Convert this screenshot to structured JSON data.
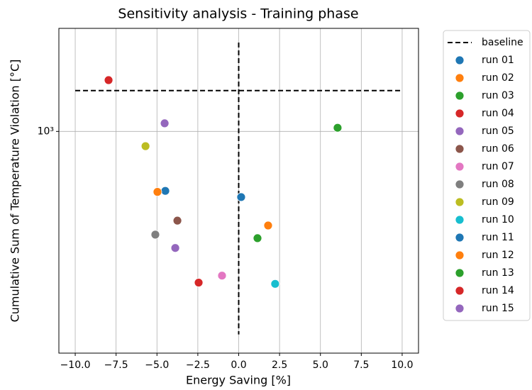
{
  "chart_data": {
    "type": "scatter",
    "title": "Sensitivity analysis - Training phase",
    "x_label": "Energy Saving [%]",
    "y_label": "Cumulative Sum of Temperature Violation [°C]",
    "xlim": [
      -11,
      11
    ],
    "ylim": [
      300,
      1750
    ],
    "y_log": true,
    "grid": true,
    "legend": "outside right",
    "xticks": [
      {
        "value": -10,
        "label": "−10.0"
      },
      {
        "value": -7.5,
        "label": "−7.5"
      },
      {
        "value": -5,
        "label": "−5.0"
      },
      {
        "value": -2.5,
        "label": "−2.5"
      },
      {
        "value": 0,
        "label": "0.0"
      },
      {
        "value": 2.5,
        "label": "2.5"
      },
      {
        "value": 5,
        "label": "5.0"
      },
      {
        "value": 7.5,
        "label": "7.5"
      },
      {
        "value": 10,
        "label": "10.0"
      }
    ],
    "yticks": [
      {
        "value": 1000,
        "label": "10³"
      }
    ],
    "lines": [
      {
        "name": "baseline",
        "color": "#000000",
        "dashed": true,
        "x": [
          -10,
          10,
          null,
          0,
          0
        ],
        "values": [
          1248,
          1248,
          null,
          1620,
          332
        ]
      }
    ],
    "series": [
      {
        "name": "run 01",
        "color": "#1f77b4",
        "x": [
          -4.49
        ],
        "values": [
          724
        ]
      },
      {
        "name": "run 02",
        "color": "#ff7f0e",
        "x": [
          -4.97
        ],
        "values": [
          720
        ]
      },
      {
        "name": "run 03",
        "color": "#2ca02c",
        "x": [
          6.05
        ],
        "values": [
          1020
        ]
      },
      {
        "name": "run 04",
        "color": "#d62728",
        "x": [
          -7.96
        ],
        "values": [
          1321
        ]
      },
      {
        "name": "run 05",
        "color": "#9467bd",
        "x": [
          -4.53
        ],
        "values": [
          1045
        ]
      },
      {
        "name": "run 06",
        "color": "#8c564b",
        "x": [
          -3.75
        ],
        "values": [
          616
        ]
      },
      {
        "name": "run 07",
        "color": "#e377c2",
        "x": [
          -1.02
        ],
        "values": [
          457
        ]
      },
      {
        "name": "run 08",
        "color": "#7f7f7f",
        "x": [
          -5.1
        ],
        "values": [
          571
        ]
      },
      {
        "name": "run 09",
        "color": "#bcbd22",
        "x": [
          -5.7
        ],
        "values": [
          923
        ]
      },
      {
        "name": "run 10",
        "color": "#17becf",
        "x": [
          2.23
        ],
        "values": [
          437
        ]
      },
      {
        "name": "run 11",
        "color": "#1f77b4",
        "x": [
          0.15
        ],
        "values": [
          700
        ]
      },
      {
        "name": "run 12",
        "color": "#ff7f0e",
        "x": [
          1.8
        ],
        "values": [
          600
        ]
      },
      {
        "name": "run 13",
        "color": "#2ca02c",
        "x": [
          1.15
        ],
        "values": [
          560
        ]
      },
      {
        "name": "run 14",
        "color": "#d62728",
        "x": [
          -2.45
        ],
        "values": [
          440
        ]
      },
      {
        "name": "run 15",
        "color": "#9467bd",
        "x": [
          -3.88
        ],
        "values": [
          531
        ]
      }
    ]
  }
}
